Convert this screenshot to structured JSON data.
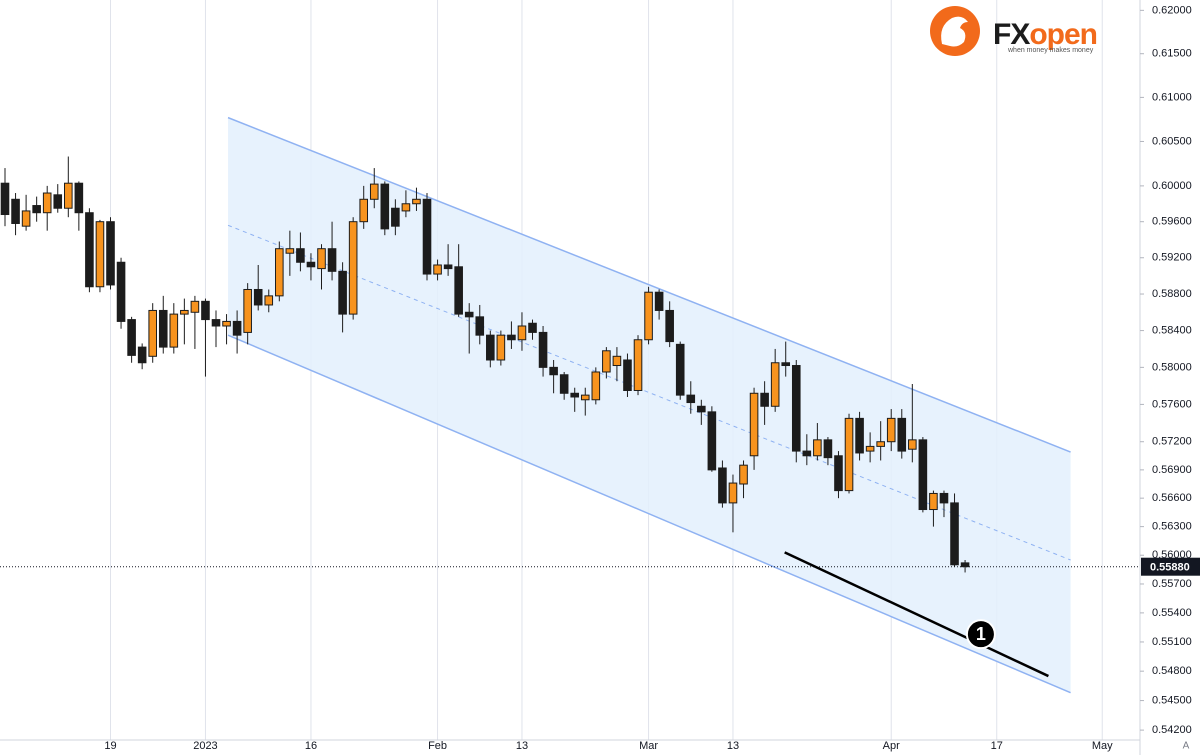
{
  "chart_data": {
    "type": "candlestick",
    "log_scale": true,
    "grid": "x",
    "up_color": "#f7931e",
    "down_color": "#1c1c1c",
    "channel_color": "#8fb2f2",
    "channel_fill": "#e3f0fd",
    "xlim": [
      -0.474,
      107.58
    ],
    "ylim": [
      0.541,
      0.6212
    ],
    "xticks": [
      {
        "value": 10,
        "label": "19"
      },
      {
        "value": 19,
        "label": "2023"
      },
      {
        "value": 29,
        "label": "16"
      },
      {
        "value": 41,
        "label": "Feb"
      },
      {
        "value": 49,
        "label": "13"
      },
      {
        "value": 61,
        "label": "Mar"
      },
      {
        "value": 69,
        "label": "13"
      },
      {
        "value": 84,
        "label": "Apr"
      },
      {
        "value": 94,
        "label": "17"
      },
      {
        "value": 104,
        "label": "May"
      }
    ],
    "yticks": [
      {
        "value": 0.62,
        "label": "0.62000"
      },
      {
        "value": 0.615,
        "label": "0.61500"
      },
      {
        "value": 0.61,
        "label": "0.61000"
      },
      {
        "value": 0.605,
        "label": "0.60500"
      },
      {
        "value": 0.6,
        "label": "0.60000"
      },
      {
        "value": 0.596,
        "label": "0.59600"
      },
      {
        "value": 0.592,
        "label": "0.59200"
      },
      {
        "value": 0.588,
        "label": "0.58800"
      },
      {
        "value": 0.584,
        "label": "0.58400"
      },
      {
        "value": 0.58,
        "label": "0.58000"
      },
      {
        "value": 0.576,
        "label": "0.57600"
      },
      {
        "value": 0.572,
        "label": "0.57200"
      },
      {
        "value": 0.569,
        "label": "0.56900"
      },
      {
        "value": 0.566,
        "label": "0.56600"
      },
      {
        "value": 0.563,
        "label": "0.56300"
      },
      {
        "value": 0.56,
        "label": "0.56000"
      },
      {
        "value": 0.557,
        "label": "0.55700"
      },
      {
        "value": 0.554,
        "label": "0.55400"
      },
      {
        "value": 0.551,
        "label": "0.55100"
      },
      {
        "value": 0.548,
        "label": "0.54800"
      },
      {
        "value": 0.545,
        "label": "0.54500"
      },
      {
        "value": 0.542,
        "label": "0.54200"
      }
    ],
    "last_price": {
      "value": 0.5588,
      "label": "0.55880"
    },
    "x": [
      0,
      1,
      2,
      3,
      4,
      5,
      6,
      7,
      8,
      9,
      10,
      11,
      12,
      13,
      14,
      15,
      16,
      17,
      18,
      19,
      20,
      21,
      22,
      23,
      24,
      25,
      26,
      27,
      28,
      29,
      30,
      31,
      32,
      33,
      34,
      35,
      36,
      37,
      38,
      39,
      40,
      41,
      42,
      43,
      44,
      45,
      46,
      47,
      48,
      49,
      50,
      51,
      52,
      53,
      54,
      55,
      56,
      57,
      58,
      59,
      60,
      61,
      62,
      63,
      64,
      65,
      66,
      67,
      68,
      69,
      70,
      71,
      72,
      73,
      74,
      75,
      76,
      77,
      78,
      79,
      80,
      81,
      82,
      83,
      84,
      85,
      86,
      87,
      88,
      89,
      90,
      91
    ],
    "open": [
      0.6003,
      0.5985,
      0.5955,
      0.5978,
      0.597,
      0.599,
      0.5975,
      0.6003,
      0.597,
      0.5888,
      0.596,
      0.5915,
      0.5852,
      0.5822,
      0.5812,
      0.5862,
      0.5822,
      0.5858,
      0.586,
      0.5872,
      0.5852,
      0.5845,
      0.585,
      0.5838,
      0.5885,
      0.5868,
      0.5878,
      0.5925,
      0.593,
      0.5915,
      0.5908,
      0.593,
      0.5905,
      0.5858,
      0.596,
      0.5985,
      0.6002,
      0.5975,
      0.5972,
      0.598,
      0.5985,
      0.5902,
      0.5912,
      0.591,
      0.586,
      0.5855,
      0.5835,
      0.5808,
      0.5835,
      0.583,
      0.5848,
      0.5838,
      0.58,
      0.5792,
      0.5772,
      0.5765,
      0.5765,
      0.5795,
      0.5802,
      0.5808,
      0.5775,
      0.583,
      0.5882,
      0.5862,
      0.5825,
      0.577,
      0.5758,
      0.5752,
      0.5692,
      0.5655,
      0.5675,
      0.5705,
      0.5772,
      0.5758,
      0.5805,
      0.5802,
      0.571,
      0.5705,
      0.5722,
      0.5705,
      0.5668,
      0.5745,
      0.571,
      0.5715,
      0.572,
      0.5745,
      0.5712,
      0.5722,
      0.5648,
      0.5665,
      0.5655,
      0.5592
    ],
    "high": [
      0.602,
      0.5992,
      0.599,
      0.5988,
      0.6,
      0.6002,
      0.6033,
      0.6005,
      0.5975,
      0.5962,
      0.5965,
      0.592,
      0.5855,
      0.5826,
      0.587,
      0.5878,
      0.587,
      0.5875,
      0.5878,
      0.5875,
      0.5862,
      0.5858,
      0.5862,
      0.5892,
      0.5912,
      0.5885,
      0.5938,
      0.595,
      0.5948,
      0.5925,
      0.5935,
      0.596,
      0.5915,
      0.5965,
      0.6,
      0.602,
      0.6005,
      0.5985,
      0.5995,
      0.5998,
      0.5992,
      0.5918,
      0.5935,
      0.5935,
      0.587,
      0.5868,
      0.584,
      0.584,
      0.585,
      0.586,
      0.5852,
      0.5845,
      0.5808,
      0.5795,
      0.5778,
      0.5778,
      0.58,
      0.5822,
      0.5822,
      0.5815,
      0.5835,
      0.5888,
      0.5885,
      0.5872,
      0.5828,
      0.5785,
      0.5765,
      0.5758,
      0.57,
      0.5685,
      0.57,
      0.5778,
      0.5785,
      0.582,
      0.5828,
      0.5808,
      0.5728,
      0.574,
      0.5725,
      0.571,
      0.575,
      0.5752,
      0.573,
      0.5742,
      0.5755,
      0.5755,
      0.5782,
      0.5725,
      0.5668,
      0.5668,
      0.5665,
      0.5595
    ],
    "low": [
      0.5955,
      0.5945,
      0.595,
      0.596,
      0.595,
      0.597,
      0.5965,
      0.595,
      0.5882,
      0.5882,
      0.5885,
      0.5842,
      0.5805,
      0.5798,
      0.5805,
      0.5815,
      0.5815,
      0.5825,
      0.582,
      0.579,
      0.5822,
      0.5825,
      0.5815,
      0.5825,
      0.5862,
      0.586,
      0.5872,
      0.59,
      0.5905,
      0.5895,
      0.5885,
      0.5895,
      0.5838,
      0.5852,
      0.5952,
      0.5975,
      0.5945,
      0.5945,
      0.5965,
      0.5972,
      0.5895,
      0.5895,
      0.59,
      0.5855,
      0.5815,
      0.5825,
      0.58,
      0.5802,
      0.582,
      0.5818,
      0.583,
      0.579,
      0.5772,
      0.5765,
      0.5752,
      0.5748,
      0.576,
      0.5788,
      0.5785,
      0.5768,
      0.577,
      0.5825,
      0.5852,
      0.5822,
      0.5765,
      0.575,
      0.5738,
      0.5688,
      0.565,
      0.5624,
      0.566,
      0.569,
      0.5738,
      0.5752,
      0.579,
      0.5698,
      0.5695,
      0.57,
      0.5695,
      0.566,
      0.5665,
      0.57,
      0.5698,
      0.57,
      0.571,
      0.5702,
      0.5698,
      0.5645,
      0.563,
      0.564,
      0.5588,
      0.5582
    ],
    "close": [
      0.5968,
      0.5958,
      0.5972,
      0.597,
      0.5992,
      0.5975,
      0.6003,
      0.597,
      0.5888,
      0.596,
      0.589,
      0.585,
      0.5813,
      0.5805,
      0.5862,
      0.5822,
      0.5858,
      0.5862,
      0.5872,
      0.5852,
      0.5845,
      0.585,
      0.5835,
      0.5885,
      0.5868,
      0.5878,
      0.593,
      0.593,
      0.5915,
      0.591,
      0.593,
      0.5905,
      0.5858,
      0.596,
      0.5985,
      0.6002,
      0.5952,
      0.5955,
      0.598,
      0.5985,
      0.5902,
      0.5912,
      0.5908,
      0.5858,
      0.5855,
      0.5835,
      0.5808,
      0.5835,
      0.583,
      0.5845,
      0.5838,
      0.58,
      0.5792,
      0.5772,
      0.5768,
      0.577,
      0.5795,
      0.5818,
      0.5812,
      0.5775,
      0.583,
      0.5882,
      0.5862,
      0.5828,
      0.577,
      0.5762,
      0.5752,
      0.569,
      0.5655,
      0.5676,
      0.5695,
      0.5772,
      0.5758,
      0.5805,
      0.5802,
      0.571,
      0.5705,
      0.5722,
      0.5703,
      0.5668,
      0.5745,
      0.5708,
      0.5715,
      0.572,
      0.5745,
      0.571,
      0.5722,
      0.5648,
      0.5665,
      0.5655,
      0.559,
      0.5588
    ],
    "channel": {
      "x": [
        21.14,
        101.0
      ],
      "upper": [
        0.6077,
        0.5709
      ],
      "middle": [
        0.5956,
        0.5595
      ],
      "lower": [
        0.5835,
        0.5458
      ]
    },
    "trend_line": {
      "x": [
        73.9,
        98.9
      ],
      "values": [
        0.5603,
        0.5475
      ]
    },
    "marker": {
      "text": "1",
      "x": 92.5,
      "value": 0.5518
    },
    "logo": {
      "brand_parts": [
        "FX",
        "open"
      ],
      "tagline": "when money makes money"
    },
    "scale_button": "A"
  }
}
